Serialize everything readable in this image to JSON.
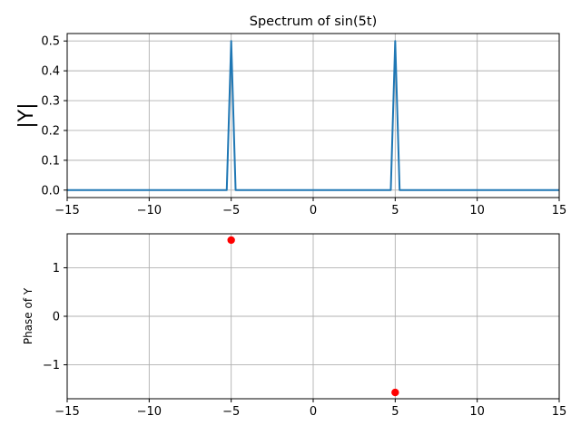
{
  "chart_data": [
    {
      "type": "line",
      "title": "Spectrum of sin(5t)",
      "xlabel": "",
      "ylabel": "|Y|",
      "xlim": [
        -15,
        15
      ],
      "ylim": [
        -0.025,
        0.525
      ],
      "xticks": [
        -15,
        -10,
        -5,
        0,
        5,
        10,
        15
      ],
      "xtick_labels": [
        "−15",
        "−10",
        "−5",
        "0",
        "5",
        "10",
        "15"
      ],
      "yticks": [
        0.0,
        0.1,
        0.2,
        0.3,
        0.4,
        0.5
      ],
      "ytick_labels": [
        "0.0",
        "0.1",
        "0.2",
        "0.3",
        "0.4",
        "0.5"
      ],
      "grid": true,
      "color": "#1f77b4",
      "series": [
        {
          "x": [
            -15,
            -5.27,
            -5.0,
            -4.73,
            4.73,
            5.0,
            5.27,
            15
          ],
          "y": [
            0.0,
            0.0,
            0.5,
            0.0,
            0.0,
            0.5,
            0.0,
            0.0
          ]
        }
      ]
    },
    {
      "type": "scatter",
      "title": "",
      "xlabel": "",
      "ylabel": "Phase of Y",
      "xlim": [
        -15,
        15
      ],
      "ylim": [
        -1.7,
        1.7
      ],
      "xticks": [
        -15,
        -10,
        -5,
        0,
        5,
        10,
        15
      ],
      "xtick_labels": [
        "−15",
        "−10",
        "−5",
        "0",
        "5",
        "10",
        "15"
      ],
      "yticks": [
        -1,
        0,
        1
      ],
      "ytick_labels": [
        "−1",
        "0",
        "1"
      ],
      "grid": true,
      "color": "#ff0000",
      "series": [
        {
          "x": [
            -5,
            5
          ],
          "y": [
            1.5708,
            -1.5708
          ]
        }
      ]
    }
  ]
}
